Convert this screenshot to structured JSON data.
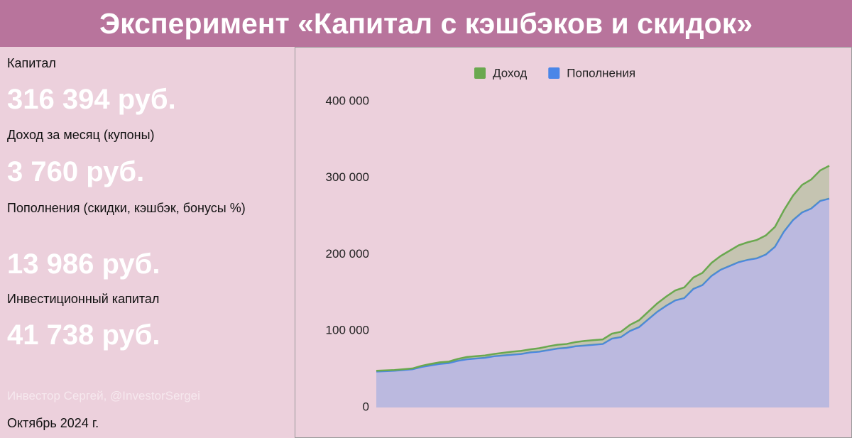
{
  "header": {
    "title": "Эксперимент «Капитал с кэшбэков и скидок»"
  },
  "panel": {
    "items": [
      {
        "label": "Капитал",
        "value": "316 394 руб."
      },
      {
        "label": "Доход за месяц (купоны)",
        "value": "3 760 руб."
      },
      {
        "label": "Пополнения (скидки, кэшбэк, бонусы %)",
        "value": "13 986 руб."
      },
      {
        "label": "Инвестиционный капитал",
        "value": "41 738 руб."
      }
    ],
    "author": "Инвестор Сергей, @InvestorSergei",
    "date": "Октябрь 2024 г."
  },
  "chart_data": {
    "type": "stacked-area",
    "series": [
      {
        "name": "Доход",
        "color": "#6aa84f",
        "values": [
          1000,
          1000,
          1000,
          1000,
          1000,
          1500,
          2000,
          2000,
          2000,
          2500,
          3000,
          3000,
          3000,
          3000,
          3500,
          4000,
          4000,
          4000,
          4500,
          5000,
          5000,
          5000,
          5500,
          6000,
          6000,
          6000,
          6500,
          7000,
          8000,
          9000,
          10000,
          11000,
          12000,
          13000,
          14000,
          15000,
          16000,
          17000,
          18000,
          20000,
          22000,
          23000,
          24000,
          25000,
          26000,
          28000,
          32000,
          36000,
          38000,
          40000,
          43000
        ]
      },
      {
        "name": "Пополнения",
        "color": "#4a86e8",
        "values": [
          47000,
          47500,
          48000,
          49000,
          50000,
          53000,
          55000,
          57000,
          58000,
          61000,
          63000,
          64000,
          65000,
          67000,
          68000,
          69000,
          70000,
          72000,
          73000,
          75000,
          77000,
          78000,
          80000,
          81000,
          82000,
          83000,
          90000,
          92000,
          100000,
          105000,
          115000,
          125000,
          133000,
          140000,
          143000,
          155000,
          160000,
          172000,
          180000,
          185000,
          190000,
          193000,
          195000,
          200000,
          210000,
          230000,
          245000,
          255000,
          260000,
          270000,
          273000
        ]
      }
    ],
    "stack_order": [
      "Пополнения",
      "Доход"
    ],
    "ylim": [
      0,
      400000
    ],
    "yticks": [
      0,
      {
        "value": 100000,
        "label": "100 000"
      },
      {
        "value": 200000,
        "label": "200 000"
      },
      {
        "value": 300000,
        "label": "300 000"
      },
      {
        "value": 400000,
        "label": "400 000"
      }
    ],
    "grid": false,
    "legend": "top"
  }
}
